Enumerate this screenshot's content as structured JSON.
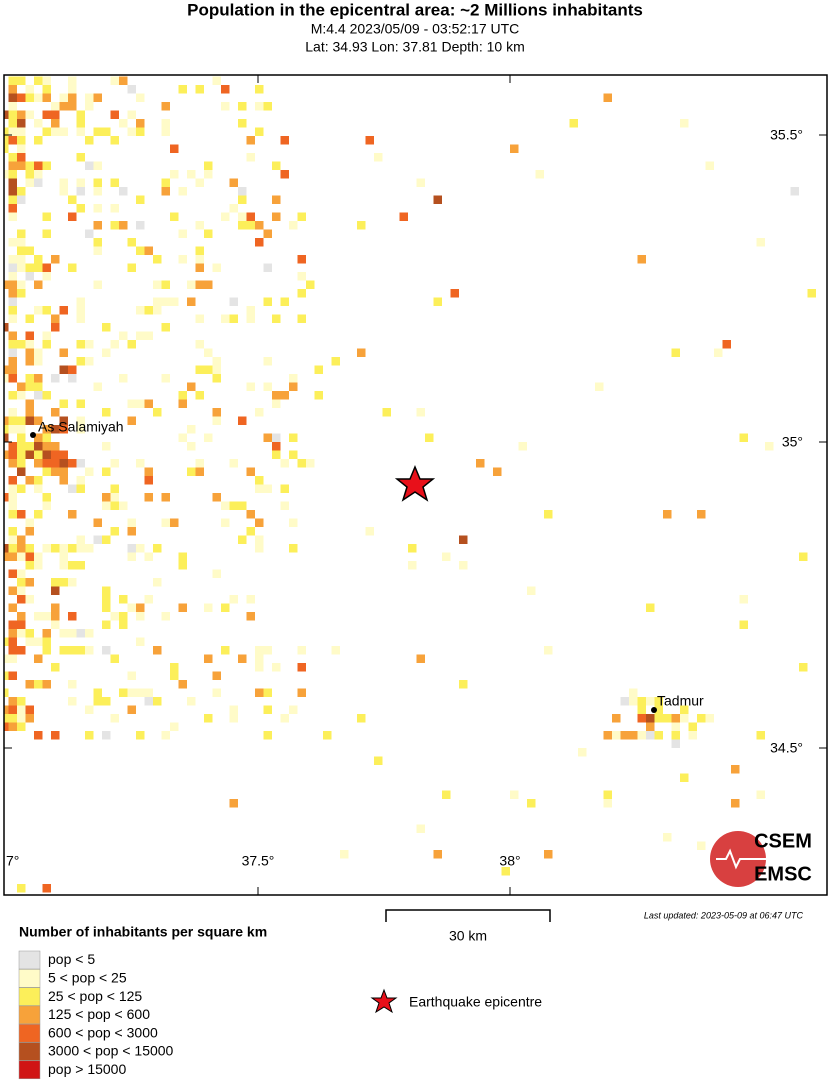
{
  "header": {
    "title": "Population in the epicentral area: ~2 Millions inhabitants",
    "subtitle_1": "M:4.4 2023/05/09 - 03:52:17 UTC",
    "subtitle_2": "Lat: 34.93 Lon: 37.81 Depth: 10 km"
  },
  "map": {
    "lat_labels": [
      "35.5°",
      "35°",
      "34.5°"
    ],
    "lon_labels": [
      "7°",
      "37.5°",
      "38°"
    ],
    "cities": [
      "As Salamiyah",
      "Tadmur"
    ],
    "logo": [
      "CSEM",
      "EMSC"
    ]
  },
  "footer": {
    "last_updated": "Last updated: 2023-05-09 at 06:47 UTC",
    "scale_label": "30 km"
  },
  "legend": {
    "title": "Number of inhabitants per square km",
    "items": [
      "pop < 5",
      "5 < pop < 25",
      "25 < pop < 125",
      "125 < pop < 600",
      "600 < pop < 3000",
      "3000 < pop < 15000",
      "pop > 15000"
    ],
    "epicentre": "Earthquake epicentre"
  }
}
